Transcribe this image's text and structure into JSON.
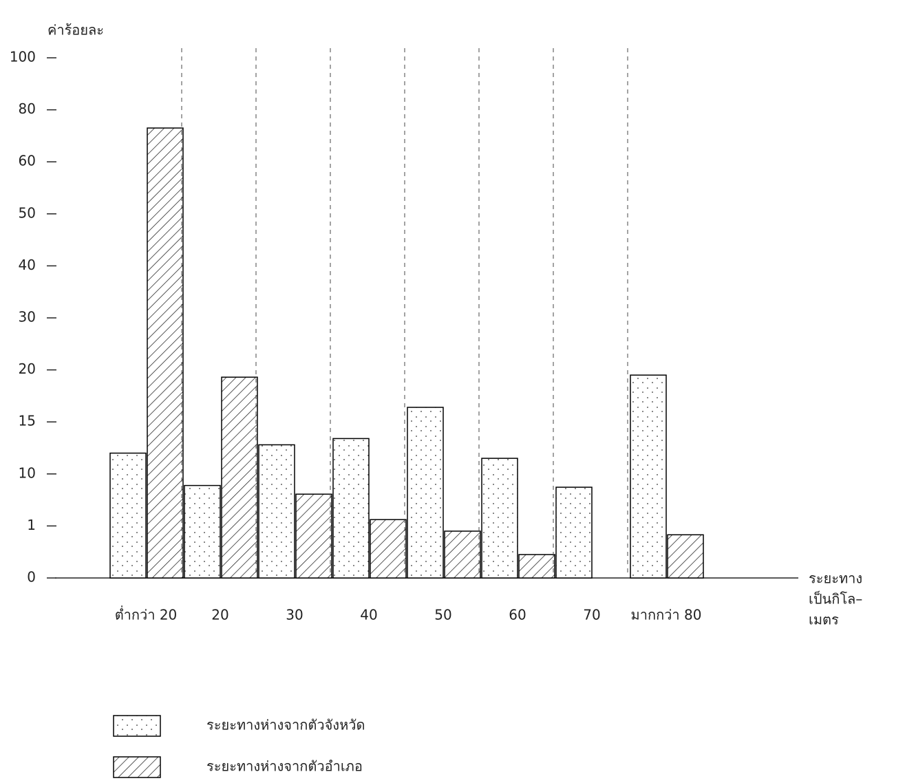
{
  "chart_data": {
    "type": "bar",
    "ylabel": "ค่าร้อยละ",
    "xlabel_lines": [
      "ระยะทาง",
      "เป็นกิโล–",
      "เมตร"
    ],
    "categories": [
      "ต่ำกว่า 20",
      "20",
      "30",
      "40",
      "50",
      "60",
      "70",
      "มากกว่า 80"
    ],
    "series": [
      {
        "name": "ระยะทางห่างจากตัวจังหวัด",
        "color": "#000000",
        "pattern": "dots",
        "values": [
          12,
          8,
          12.8,
          13.4,
          16.4,
          11.5,
          7.7,
          19.5
        ]
      },
      {
        "name": "ระยะทางห่างจากตัวอำเภอ",
        "color": "#000000",
        "pattern": "hatch",
        "values": [
          73,
          19.3,
          6.5,
          2.1,
          0.9,
          0.45,
          null,
          0.83
        ]
      }
    ],
    "ylim": [
      0,
      100
    ],
    "yticks": [
      0,
      1,
      10,
      15,
      20,
      30,
      40,
      50,
      60,
      80,
      100
    ],
    "group_separators": true
  }
}
